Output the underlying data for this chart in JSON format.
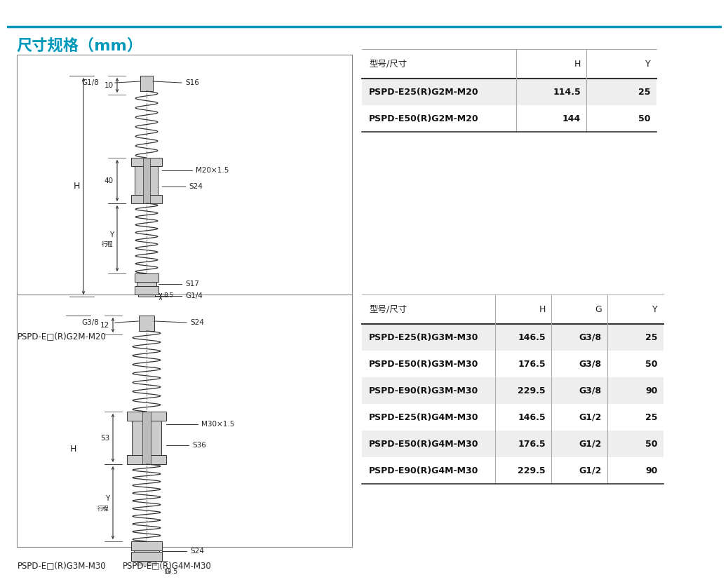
{
  "title": "尺寸规格（mm）",
  "title_color": "#0099bb",
  "bg_color": "#ffffff",
  "table1": {
    "headers": [
      "型号/尺寸",
      "H",
      "Y"
    ],
    "rows": [
      [
        "PSPD-E25(R)G2M-M20",
        "114.5",
        "25"
      ],
      [
        "PSPD-E50(R)G2M-M20",
        "144",
        "50"
      ]
    ]
  },
  "table2": {
    "headers": [
      "型号/尺寸",
      "H",
      "G",
      "Y"
    ],
    "rows": [
      [
        "PSPD-E25(R)G3M-M30",
        "146.5",
        "G3/8",
        "25"
      ],
      [
        "PSPD-E50(R)G3M-M30",
        "176.5",
        "G3/8",
        "50"
      ],
      [
        "PSPD-E90(R)G3M-M30",
        "229.5",
        "G3/8",
        "90"
      ],
      [
        "PSPD-E25(R)G4M-M30",
        "146.5",
        "G1/2",
        "25"
      ],
      [
        "PSPD-E50(R)G4M-M30",
        "176.5",
        "G1/2",
        "50"
      ],
      [
        "PSPD-E90(R)G4M-M30",
        "229.5",
        "G1/2",
        "90"
      ]
    ]
  },
  "label1": "PSPD-E□(R)G2M-M20",
  "label2a": "PSPD-E□(R)G3M-M30",
  "label2b": "PSPD-E□(R)G4M-M30"
}
